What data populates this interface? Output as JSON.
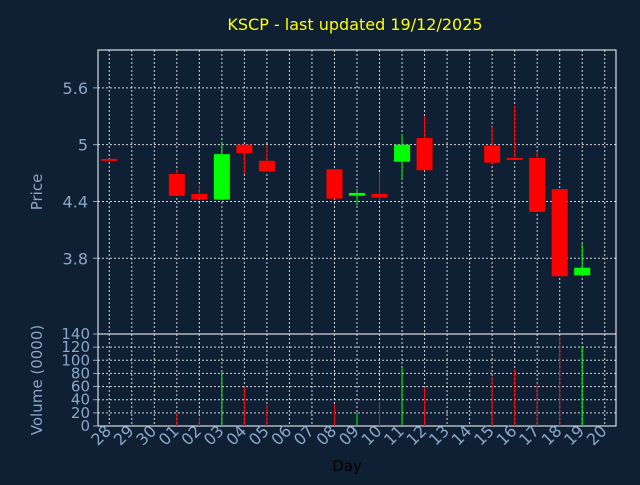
{
  "colors": {
    "background": "#102034",
    "text": "#8aa6c8",
    "title": "#ffff00",
    "up": "#00ff00",
    "down": "#ff0000",
    "grid": "#ffffff"
  },
  "chart_data": [
    {
      "type": "candlestick",
      "title": "KSCP - last updated 19/12/2025",
      "ylabel": "Price",
      "ylim": [
        3.0,
        6.0
      ],
      "yticks": [
        "3.8",
        "4.4",
        "5",
        "5.6"
      ],
      "grid": true,
      "x": [
        "28",
        "29",
        "30",
        "01",
        "02",
        "03",
        "04",
        "05",
        "06",
        "07",
        "08",
        "09",
        "10",
        "11",
        "12",
        "13",
        "14",
        "15",
        "16",
        "17",
        "18",
        "19",
        "20"
      ],
      "candles": [
        {
          "day": "28",
          "open": 4.85,
          "high": 4.85,
          "low": 4.83,
          "close": 4.83
        },
        {
          "day": "01",
          "open": 4.69,
          "high": 4.74,
          "low": 4.46,
          "close": 4.46
        },
        {
          "day": "02",
          "open": 4.48,
          "high": 4.57,
          "low": 4.42,
          "close": 4.42
        },
        {
          "day": "03",
          "open": 4.42,
          "high": 5.03,
          "low": 4.42,
          "close": 4.9
        },
        {
          "day": "04",
          "open": 5.0,
          "high": 5.0,
          "low": 4.69,
          "close": 4.91
        },
        {
          "day": "05",
          "open": 4.83,
          "high": 4.99,
          "low": 4.71,
          "close": 4.72
        },
        {
          "day": "08",
          "open": 4.74,
          "high": 4.74,
          "low": 4.43,
          "close": 4.43
        },
        {
          "day": "09",
          "open": 4.46,
          "high": 4.53,
          "low": 4.36,
          "close": 4.49
        },
        {
          "day": "10",
          "open": 4.48,
          "high": 4.71,
          "low": 4.41,
          "close": 4.44
        },
        {
          "day": "11",
          "open": 4.82,
          "high": 5.11,
          "low": 4.64,
          "close": 5.0
        },
        {
          "day": "12",
          "open": 5.07,
          "high": 5.3,
          "low": 4.73,
          "close": 4.73
        },
        {
          "day": "15",
          "open": 4.99,
          "high": 5.19,
          "low": 4.79,
          "close": 4.81
        },
        {
          "day": "16",
          "open": 4.86,
          "high": 5.41,
          "low": 4.84,
          "close": 4.85
        },
        {
          "day": "17",
          "open": 4.86,
          "high": 4.93,
          "low": 4.29,
          "close": 4.29
        },
        {
          "day": "18",
          "open": 4.53,
          "high": 4.53,
          "low": 3.61,
          "close": 3.61
        },
        {
          "day": "19",
          "open": 3.62,
          "high": 3.96,
          "low": 3.61,
          "close": 3.7
        }
      ]
    },
    {
      "type": "bar",
      "xlabel": "Day",
      "ylabel": "Volume (0000)",
      "ylim": [
        0,
        140
      ],
      "yticks": [
        "0",
        "20",
        "40",
        "60",
        "80",
        "100",
        "120",
        "140"
      ],
      "grid": true,
      "categories": [
        "28",
        "29",
        "30",
        "01",
        "02",
        "03",
        "04",
        "05",
        "06",
        "07",
        "08",
        "09",
        "10",
        "11",
        "12",
        "13",
        "14",
        "15",
        "16",
        "17",
        "18",
        "19",
        "20"
      ],
      "values": [
        {
          "day": "28",
          "value": 0,
          "dir": "down"
        },
        {
          "day": "01",
          "value": 20,
          "dir": "down"
        },
        {
          "day": "02",
          "value": 13,
          "dir": "down"
        },
        {
          "day": "03",
          "value": 82,
          "dir": "up"
        },
        {
          "day": "04",
          "value": 60,
          "dir": "down"
        },
        {
          "day": "05",
          "value": 32,
          "dir": "down"
        },
        {
          "day": "08",
          "value": 33,
          "dir": "down"
        },
        {
          "day": "09",
          "value": 20,
          "dir": "up"
        },
        {
          "day": "10",
          "value": 37,
          "dir": "down"
        },
        {
          "day": "11",
          "value": 88,
          "dir": "up"
        },
        {
          "day": "12",
          "value": 59,
          "dir": "down"
        },
        {
          "day": "15",
          "value": 75,
          "dir": "down"
        },
        {
          "day": "16",
          "value": 87,
          "dir": "down"
        },
        {
          "day": "17",
          "value": 65,
          "dir": "down"
        },
        {
          "day": "18",
          "value": 136,
          "dir": "down"
        },
        {
          "day": "19",
          "value": 121,
          "dir": "up"
        }
      ]
    }
  ]
}
